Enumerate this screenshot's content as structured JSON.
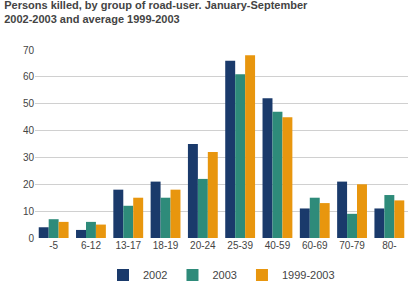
{
  "chart_data": {
    "type": "bar",
    "title": "Persons killed, by group of road-user. January-September",
    "subtitle": "2002-2003 and average 1999-2003",
    "categories": [
      "-5",
      "6-12",
      "13-17",
      "18-19",
      "20-24",
      "25-39",
      "40-59",
      "60-69",
      "70-79",
      "80-"
    ],
    "series": [
      {
        "name": "2002",
        "color": "#1a3a6b",
        "values": [
          4,
          3,
          18,
          21,
          35,
          66,
          52,
          11,
          21,
          11
        ]
      },
      {
        "name": "2003",
        "color": "#2e8b7a",
        "values": [
          7,
          6,
          12,
          15,
          22,
          61,
          47,
          15,
          9,
          16
        ]
      },
      {
        "name": "1999-2003",
        "color": "#e8960e",
        "values": [
          6,
          5,
          15,
          18,
          32,
          68,
          45,
          13,
          20,
          14
        ]
      }
    ],
    "ylim": [
      0,
      70
    ],
    "yticks": [
      0,
      10,
      20,
      30,
      40,
      50,
      60,
      70
    ],
    "grid": true,
    "legend": "bottom"
  }
}
